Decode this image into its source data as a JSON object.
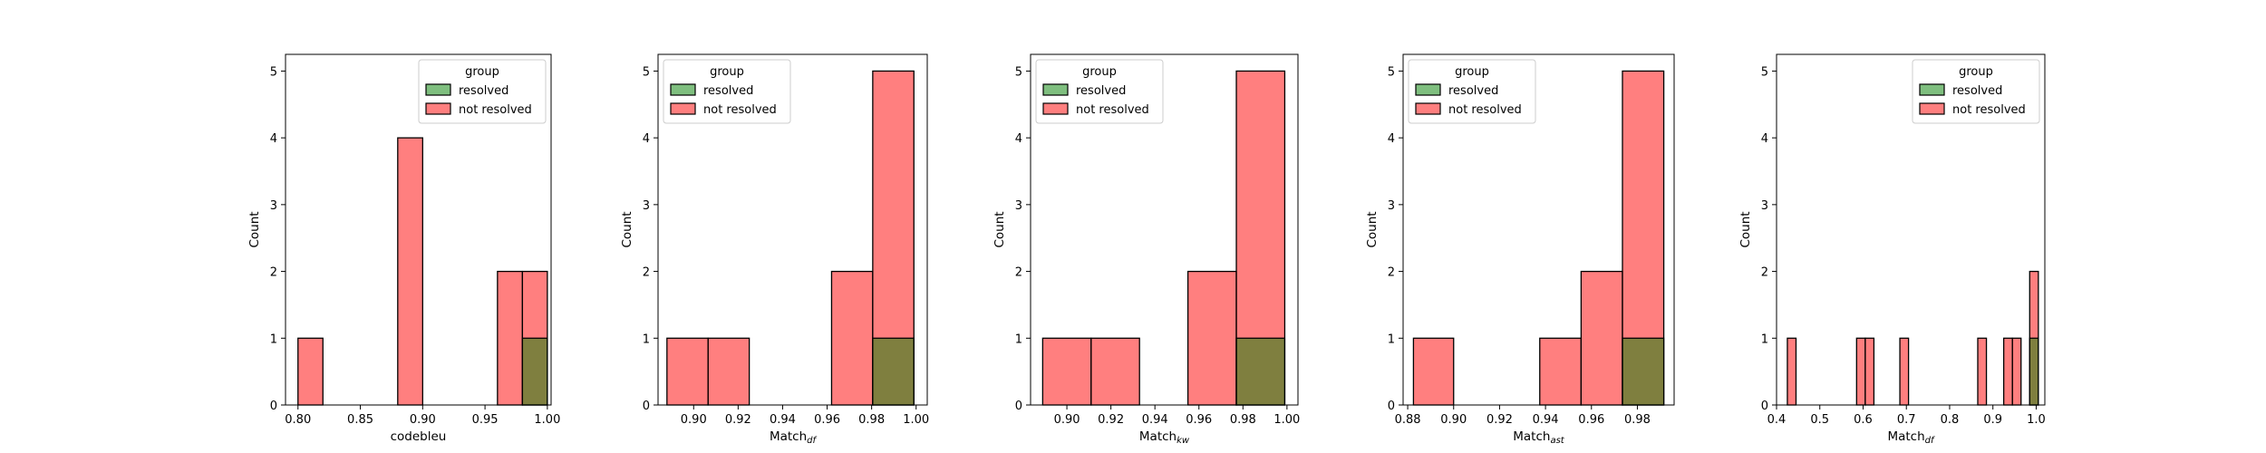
{
  "colors": {
    "resolved": "#008000",
    "not_resolved": "#ff0000",
    "bar_alpha": 0.5,
    "edge": "#000000"
  },
  "chart_data": [
    {
      "type": "histogram",
      "xlabel": "codebleu",
      "xlabel_sub": "",
      "ylabel": "Count",
      "xlim": [
        0.79,
        1.003
      ],
      "ylim": [
        0,
        5.25
      ],
      "xticks": [
        0.8,
        0.85,
        0.9,
        0.95,
        1.0
      ],
      "xtick_labels": [
        "0.80",
        "0.85",
        "0.90",
        "0.95",
        "1.00"
      ],
      "yticks": [
        0,
        1,
        2,
        3,
        4,
        5
      ],
      "legend": {
        "title": "group",
        "position": "top-right",
        "entries": [
          "resolved",
          "not resolved"
        ]
      },
      "series": [
        {
          "name": "not resolved",
          "bins": [
            [
              0.8,
              0.82,
              1
            ],
            [
              0.88,
              0.9,
              4
            ],
            [
              0.96,
              0.98,
              2
            ],
            [
              0.98,
              1.0,
              2
            ]
          ]
        },
        {
          "name": "resolved",
          "bins": [
            [
              0.98,
              1.0,
              1
            ]
          ]
        }
      ]
    },
    {
      "type": "histogram",
      "xlabel": "Match",
      "xlabel_sub": "df",
      "ylabel": "Count",
      "xlim": [
        0.884,
        1.005
      ],
      "ylim": [
        0,
        5.25
      ],
      "xticks": [
        0.9,
        0.92,
        0.94,
        0.96,
        0.98,
        1.0
      ],
      "xtick_labels": [
        "0.90",
        "0.92",
        "0.94",
        "0.96",
        "0.98",
        "1.00"
      ],
      "yticks": [
        0,
        1,
        2,
        3,
        4,
        5
      ],
      "legend": {
        "title": "group",
        "position": "top-left",
        "entries": [
          "resolved",
          "not resolved"
        ]
      },
      "series": [
        {
          "name": "not resolved",
          "bins": [
            [
              0.888,
              0.9065,
              1
            ],
            [
              0.9065,
              0.925,
              1
            ],
            [
              0.962,
              0.9805,
              2
            ],
            [
              0.9805,
              0.999,
              5
            ]
          ]
        },
        {
          "name": "resolved",
          "bins": [
            [
              0.9805,
              0.999,
              1
            ]
          ]
        }
      ]
    },
    {
      "type": "histogram",
      "xlabel": "Match",
      "xlabel_sub": "kw",
      "ylabel": "Count",
      "xlim": [
        0.8835,
        1.005
      ],
      "ylim": [
        0,
        5.25
      ],
      "xticks": [
        0.9,
        0.92,
        0.94,
        0.96,
        0.98,
        1.0
      ],
      "xtick_labels": [
        "0.90",
        "0.92",
        "0.94",
        "0.96",
        "0.98",
        "1.00"
      ],
      "yticks": [
        0,
        1,
        2,
        3,
        4,
        5
      ],
      "legend": {
        "title": "group",
        "position": "top-left",
        "entries": [
          "resolved",
          "not resolved"
        ]
      },
      "series": [
        {
          "name": "not resolved",
          "bins": [
            [
              0.889,
              0.911,
              1
            ],
            [
              0.911,
              0.933,
              1
            ],
            [
              0.955,
              0.977,
              2
            ],
            [
              0.977,
              0.999,
              5
            ]
          ]
        },
        {
          "name": "resolved",
          "bins": [
            [
              0.977,
              0.999,
              1
            ]
          ]
        }
      ]
    },
    {
      "type": "histogram",
      "xlabel": "Match",
      "xlabel_sub": "ast",
      "ylabel": "Count",
      "xlim": [
        0.878,
        0.996
      ],
      "ylim": [
        0,
        5.25
      ],
      "xticks": [
        0.88,
        0.9,
        0.92,
        0.94,
        0.96,
        0.98
      ],
      "xtick_labels": [
        "0.88",
        "0.90",
        "0.92",
        "0.94",
        "0.96",
        "0.98"
      ],
      "yticks": [
        0,
        1,
        2,
        3,
        4,
        5
      ],
      "legend": {
        "title": "group",
        "position": "top-left",
        "entries": [
          "resolved",
          "not resolved"
        ]
      },
      "series": [
        {
          "name": "not resolved",
          "bins": [
            [
              0.8825,
              0.9,
              1
            ],
            [
              0.9375,
              0.9555,
              1
            ],
            [
              0.9555,
              0.9735,
              2
            ],
            [
              0.9735,
              0.9915,
              5
            ]
          ]
        },
        {
          "name": "resolved",
          "bins": [
            [
              0.9735,
              0.9915,
              1
            ]
          ]
        }
      ]
    },
    {
      "type": "histogram",
      "xlabel": "Match",
      "xlabel_sub": "df",
      "ylabel": "Count",
      "xlim": [
        0.4,
        1.02
      ],
      "ylim": [
        0,
        5.25
      ],
      "xticks": [
        0.4,
        0.5,
        0.6,
        0.7,
        0.8,
        0.9,
        1.0
      ],
      "xtick_labels": [
        "0.4",
        "0.5",
        "0.6",
        "0.7",
        "0.8",
        "0.9",
        "1.0"
      ],
      "yticks": [
        0,
        1,
        2,
        3,
        4,
        5
      ],
      "legend": {
        "title": "group",
        "position": "top-right",
        "entries": [
          "resolved",
          "not resolved"
        ]
      },
      "series": [
        {
          "name": "not resolved",
          "bins": [
            [
              0.425,
              0.445,
              1
            ],
            [
              0.585,
              0.605,
              1
            ],
            [
              0.605,
              0.625,
              1
            ],
            [
              0.685,
              0.705,
              1
            ],
            [
              0.865,
              0.885,
              1
            ],
            [
              0.925,
              0.945,
              1
            ],
            [
              0.945,
              0.965,
              1
            ],
            [
              0.985,
              1.005,
              2
            ]
          ]
        },
        {
          "name": "resolved",
          "bins": [
            [
              0.985,
              1.005,
              1
            ]
          ]
        }
      ]
    }
  ]
}
